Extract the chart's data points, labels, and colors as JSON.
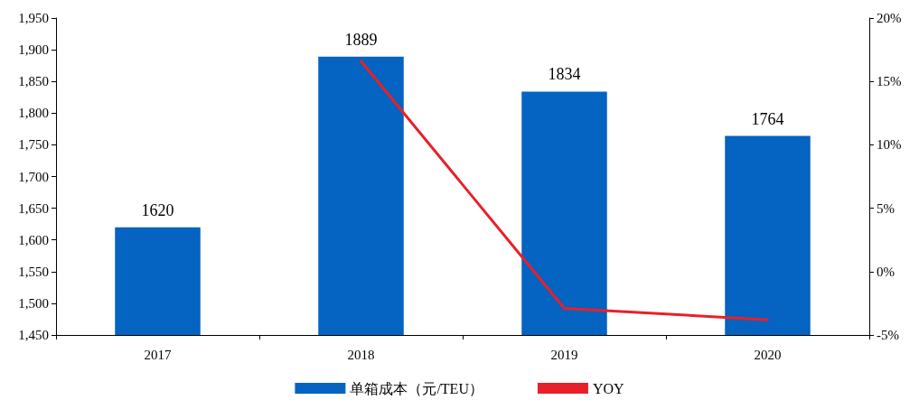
{
  "chart_data": {
    "type": "bar",
    "categories": [
      "2017",
      "2018",
      "2019",
      "2020"
    ],
    "series": [
      {
        "name": "单箱成本（元/TEU）",
        "color": "#0563c1",
        "values": [
          1620,
          1889,
          1834,
          1764
        ],
        "value_labels": [
          "1620",
          "1889",
          "1834",
          "1764"
        ]
      },
      {
        "name": "YOY",
        "type": "line",
        "axis": "y2",
        "color": "#e8202a",
        "values": [
          null,
          16.6,
          -2.9,
          -3.8
        ]
      }
    ],
    "ylim": [
      1450,
      1950
    ],
    "yticks": [
      {
        "value": 1450,
        "label": "1,450"
      },
      {
        "value": 1500,
        "label": "1,500"
      },
      {
        "value": 1550,
        "label": "1,550"
      },
      {
        "value": 1600,
        "label": "1,600"
      },
      {
        "value": 1650,
        "label": "1,650"
      },
      {
        "value": 1700,
        "label": "1,700"
      },
      {
        "value": 1750,
        "label": "1,750"
      },
      {
        "value": 1800,
        "label": "1,800"
      },
      {
        "value": 1850,
        "label": "1,850"
      },
      {
        "value": 1900,
        "label": "1,900"
      },
      {
        "value": 1950,
        "label": "1,950"
      }
    ],
    "y2lim": [
      -5,
      20
    ],
    "y2ticks": [
      {
        "value": -5,
        "label": "-5%"
      },
      {
        "value": 0,
        "label": "0%"
      },
      {
        "value": 5,
        "label": "5%"
      },
      {
        "value": 10,
        "label": "10%"
      },
      {
        "value": 15,
        "label": "15%"
      },
      {
        "value": 20,
        "label": "20%"
      }
    ],
    "legend": "bottom",
    "grid": false,
    "marker": "none",
    "line_style": "solid"
  }
}
